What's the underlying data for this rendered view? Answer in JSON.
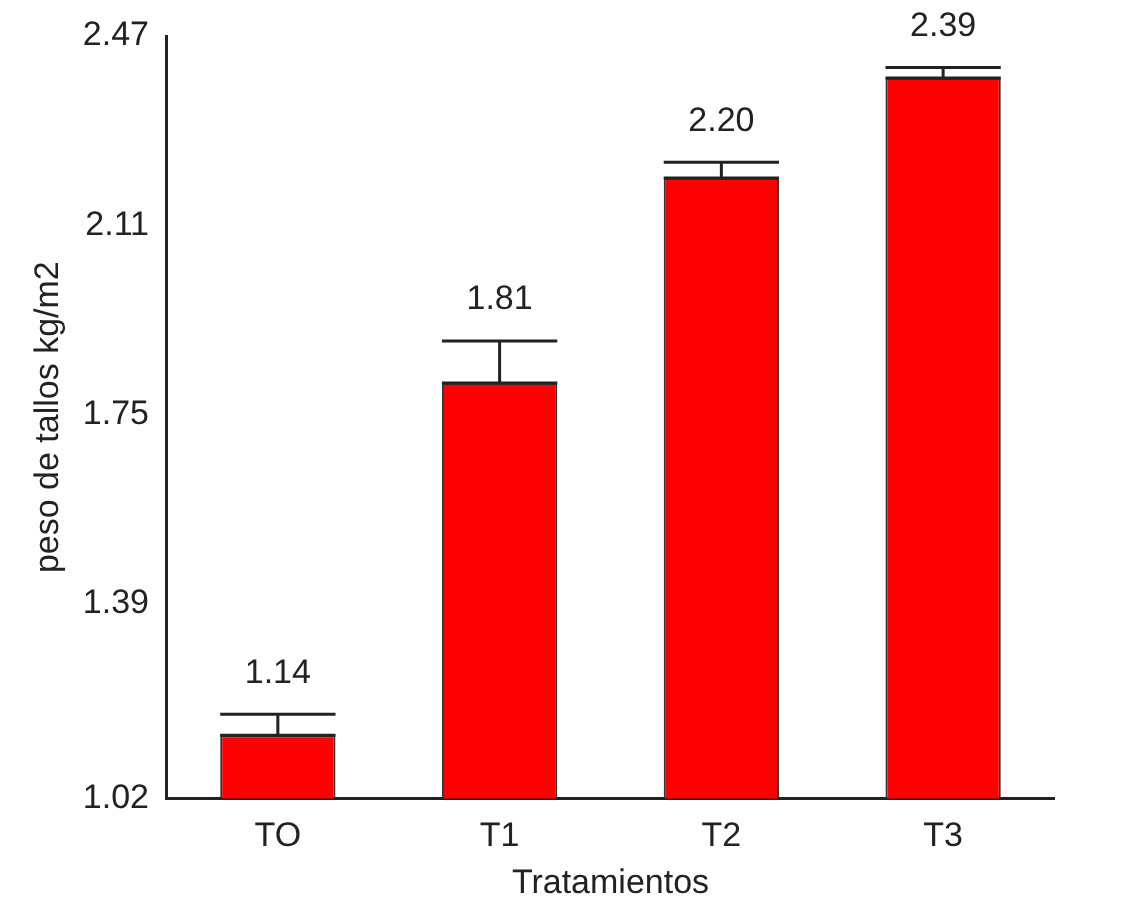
{
  "chart_data": {
    "type": "bar",
    "xlabel": "Tratamientos",
    "ylabel": "peso de tallos kg/m2",
    "categories": [
      "TO",
      "T1",
      "T2",
      "T3"
    ],
    "values": [
      1.14,
      1.81,
      2.2,
      2.39
    ],
    "errors": [
      [
        1.14,
        1.18
      ],
      [
        1.81,
        1.89
      ],
      [
        2.2,
        2.23
      ],
      [
        2.39,
        2.41
      ]
    ],
    "color": "#ff0000",
    "value_labels": [
      "1.14",
      "1.81",
      "2.20",
      "2.39"
    ],
    "ylim": [
      1.02,
      2.47
    ],
    "yticks": [
      1.02,
      1.39,
      1.75,
      2.11,
      2.47
    ],
    "grid": false,
    "legend": false
  }
}
